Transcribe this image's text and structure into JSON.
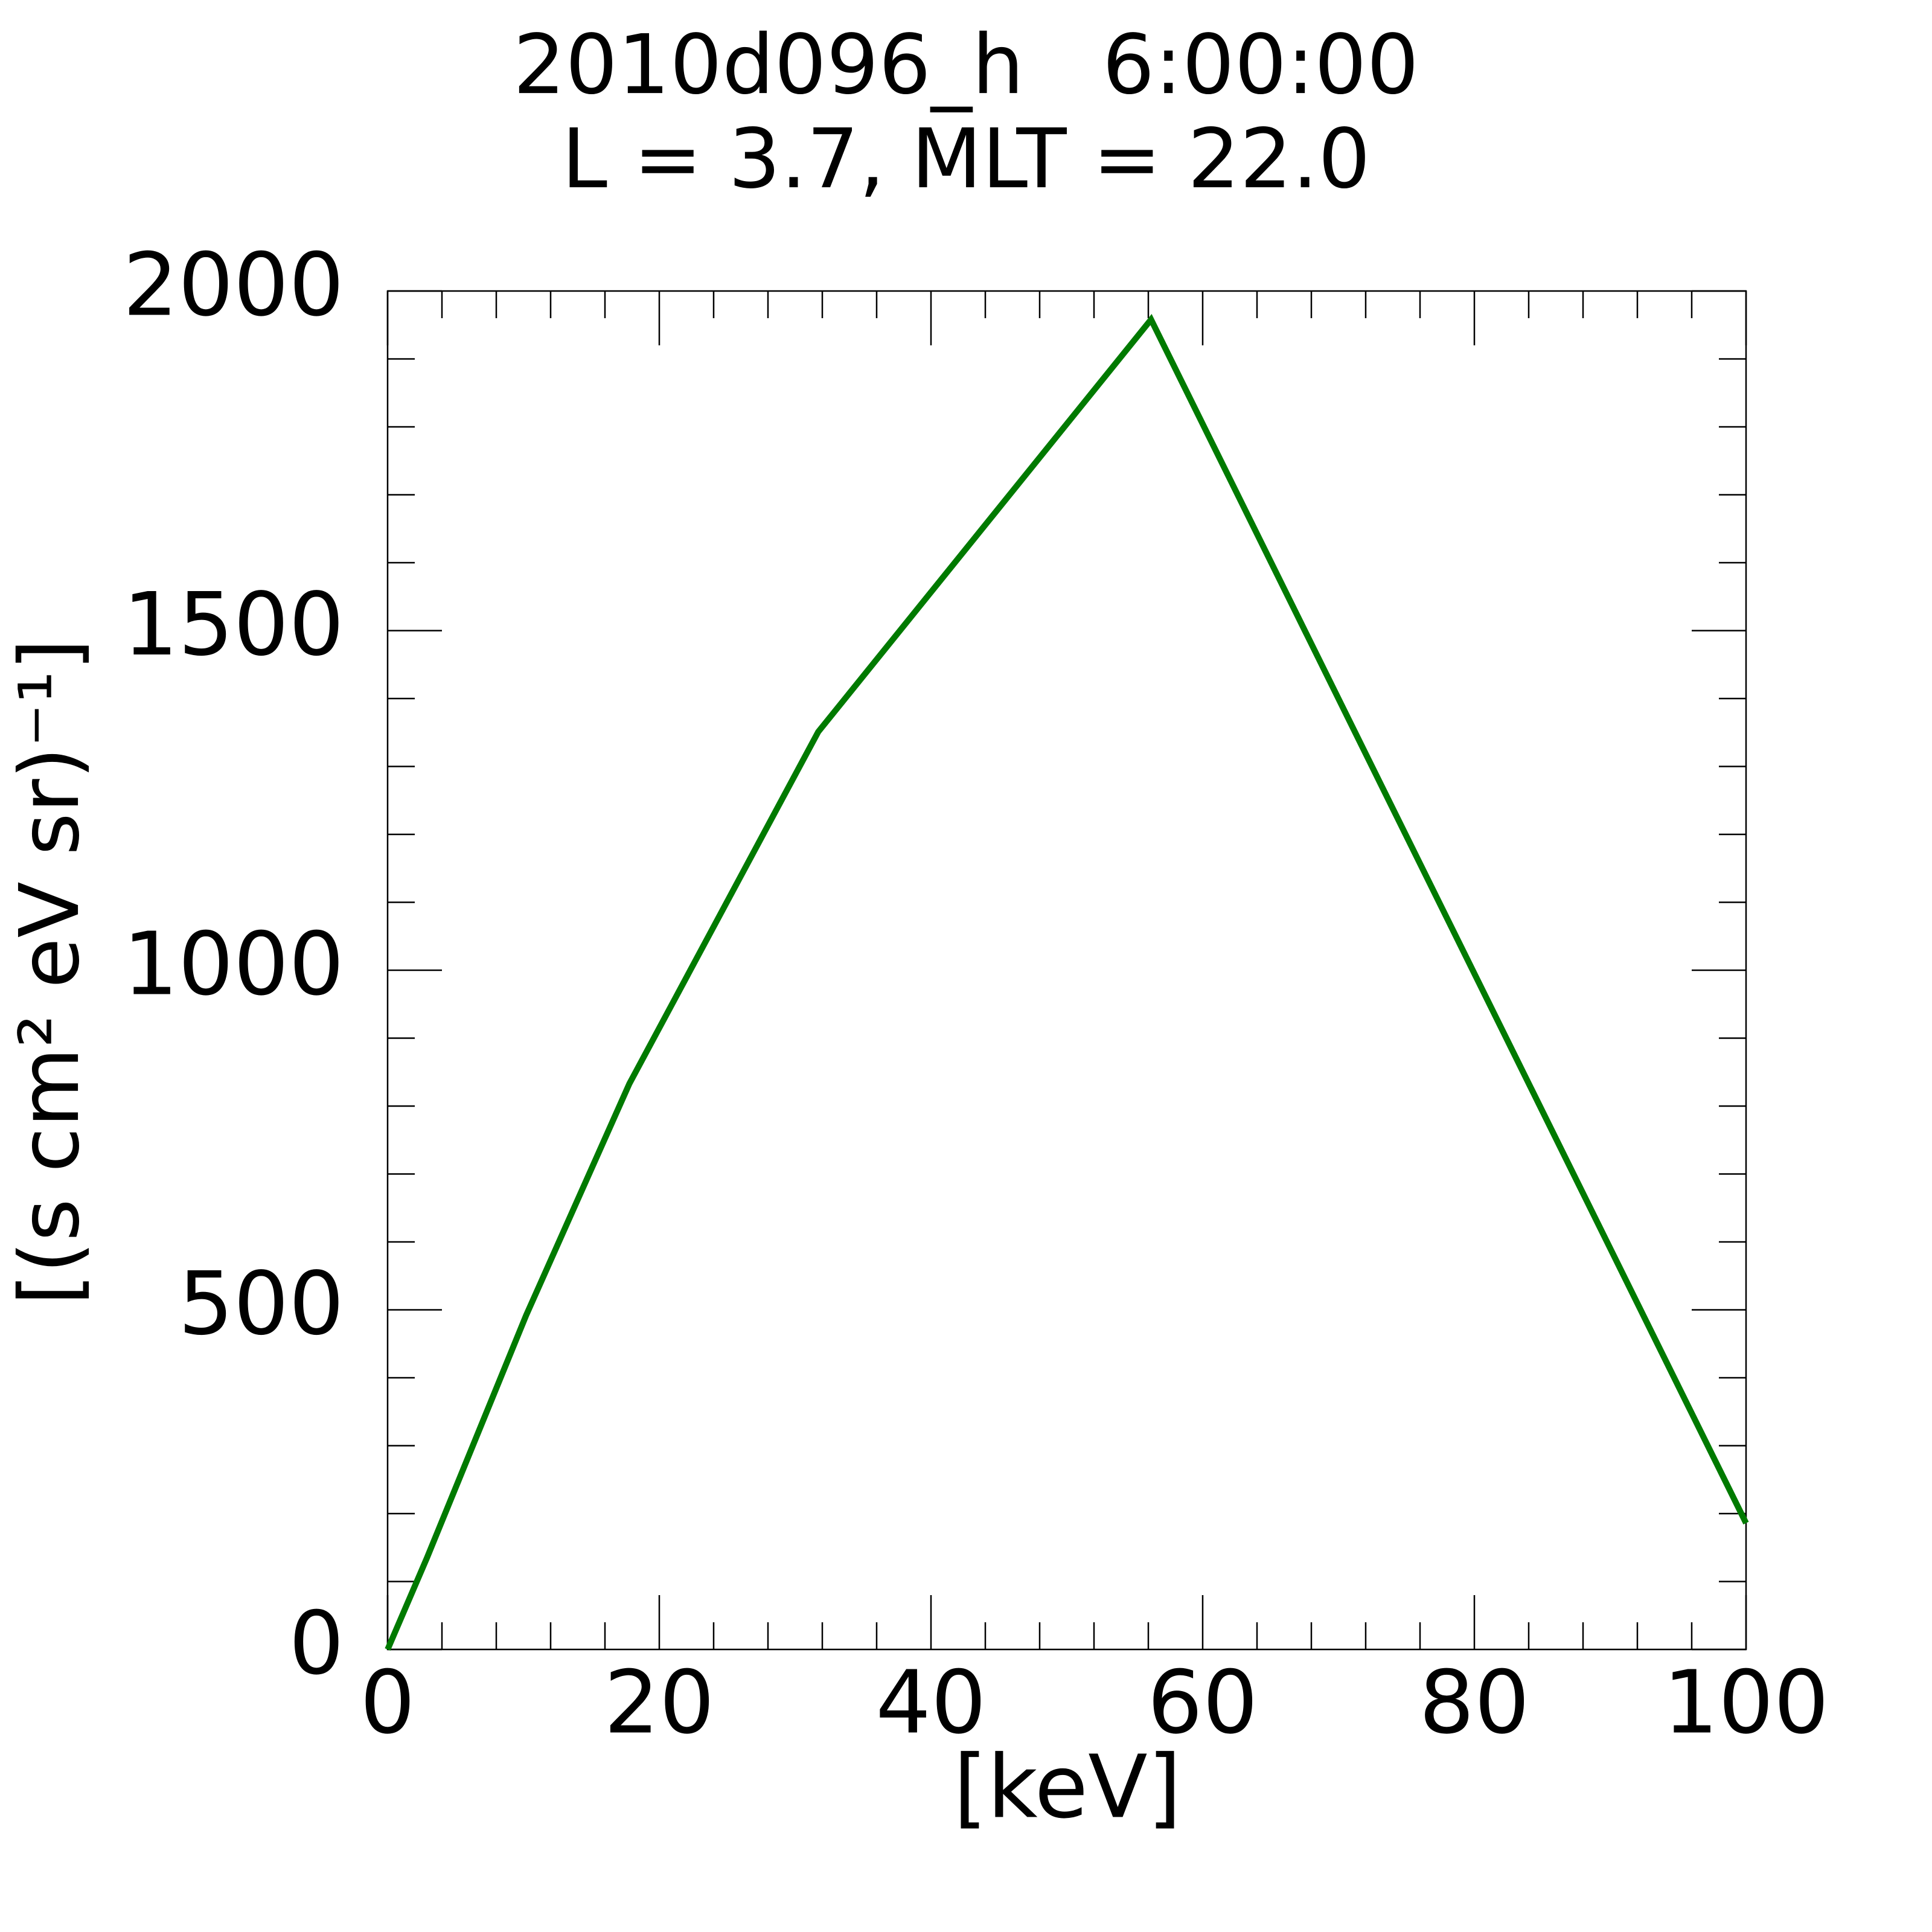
{
  "chart_data": {
    "type": "line",
    "title": [
      "2010d096_h   6:00:00",
      "L = 3.7, MLT = 22.0"
    ],
    "xlabel": "[keV]",
    "ylabel": "[(s cm² eV sr)⁻¹]",
    "x": [
      0,
      2.9,
      10.2,
      17.8,
      31.7,
      56.2,
      100
    ],
    "series": [
      {
        "color": "#007a00",
        "values": [
          0,
          135,
          492,
          833,
          1351,
          1958,
          186
        ]
      }
    ],
    "xlim": [
      0,
      100
    ],
    "xticks": [
      0,
      20,
      40,
      60,
      80,
      100
    ],
    "ylim": [
      0,
      2000
    ],
    "yticks": [
      0,
      500,
      1000,
      1500,
      2000
    ]
  }
}
